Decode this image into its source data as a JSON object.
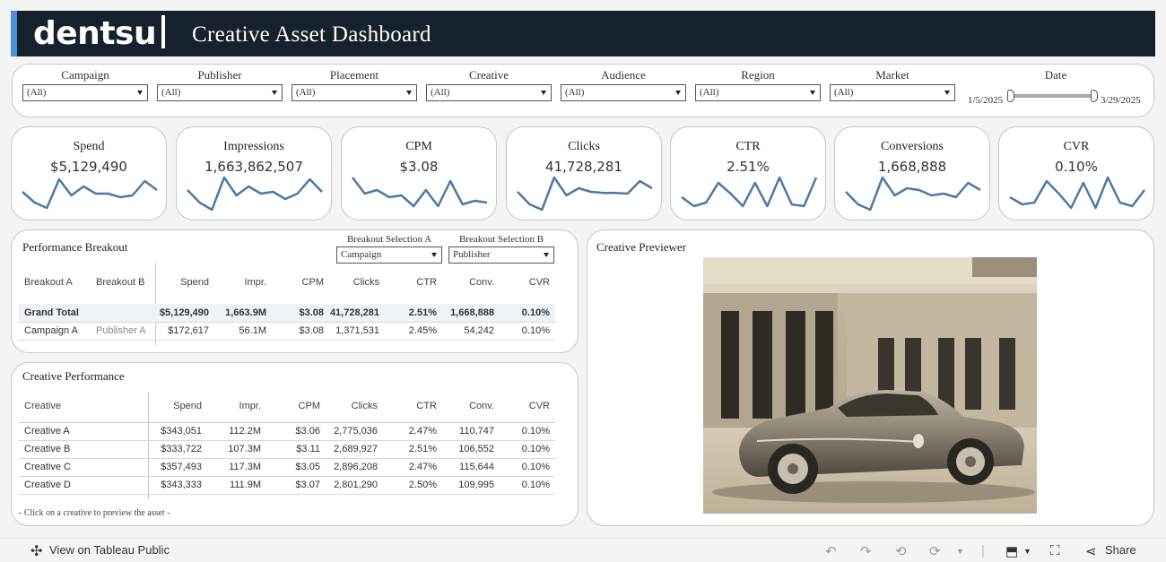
{
  "header": {
    "logo": "dentsu",
    "title": "Creative Asset Dashboard",
    "accent_color": "#4a90d9",
    "bg_color": "#15222d"
  },
  "filters": [
    {
      "label": "Campaign",
      "value": "(All)"
    },
    {
      "label": "Publisher",
      "value": "(All)"
    },
    {
      "label": "Placement",
      "value": "(All)"
    },
    {
      "label": "Creative",
      "value": "(All)"
    },
    {
      "label": "Audience",
      "value": "(All)"
    },
    {
      "label": "Region",
      "value": "(All)"
    },
    {
      "label": "Market",
      "value": "(All)"
    }
  ],
  "date_filter": {
    "label": "Date",
    "start": "1/5/2025",
    "end": "3/29/2025"
  },
  "kpis": [
    {
      "label": "Spend",
      "value": "$5,129,490",
      "trend": [
        0.45,
        0.75,
        0.9,
        0.1,
        0.55,
        0.3,
        0.5,
        0.5,
        0.6,
        0.55,
        0.15,
        0.4
      ]
    },
    {
      "label": "Impressions",
      "value": "1,663,862,507",
      "trend": [
        0.4,
        0.75,
        0.95,
        0.05,
        0.55,
        0.3,
        0.5,
        0.45,
        0.65,
        0.5,
        0.1,
        0.45
      ]
    },
    {
      "label": "CPM",
      "value": "$3.08",
      "trend": [
        0.05,
        0.5,
        0.4,
        0.6,
        0.55,
        0.85,
        0.4,
        0.85,
        0.15,
        0.8,
        0.7,
        0.75
      ]
    },
    {
      "label": "Clicks",
      "value": "41,728,281",
      "trend": [
        0.45,
        0.8,
        0.95,
        0.05,
        0.55,
        0.35,
        0.45,
        0.48,
        0.48,
        0.5,
        0.15,
        0.35
      ]
    },
    {
      "label": "CTR",
      "value": "2.51%",
      "trend": [
        0.6,
        0.85,
        0.75,
        0.2,
        0.5,
        0.85,
        0.2,
        0.85,
        0.05,
        0.8,
        0.85,
        0.05
      ]
    },
    {
      "label": "Conversions",
      "value": "1,668,888",
      "trend": [
        0.45,
        0.8,
        0.95,
        0.05,
        0.55,
        0.35,
        0.4,
        0.55,
        0.5,
        0.6,
        0.2,
        0.4
      ]
    },
    {
      "label": "CVR",
      "value": "0.10%",
      "trend": [
        0.6,
        0.8,
        0.75,
        0.15,
        0.5,
        0.9,
        0.2,
        0.9,
        0.05,
        0.75,
        0.85,
        0.4
      ]
    }
  ],
  "kpi_line_color": "#4e79a7",
  "performance_breakout": {
    "title": "Performance Breakout",
    "selection_a": {
      "label": "Breakout Selection A",
      "value": "Campaign"
    },
    "selection_b": {
      "label": "Breakout Selection B",
      "value": "Publisher"
    },
    "columns": [
      "Breakout A",
      "Breakout B",
      "Spend",
      "Impr.",
      "CPM",
      "Clicks",
      "CTR",
      "Conv.",
      "CVR"
    ],
    "rows": [
      [
        "Grand Total",
        "",
        "$5,129,490",
        "1,663.9M",
        "$3.08",
        "41,728,281",
        "2.51%",
        "1,668,888",
        "0.10%"
      ],
      [
        "Campaign A",
        "Publisher A",
        "$172,617",
        "56.1M",
        "$3.08",
        "1,371,531",
        "2.45%",
        "54,242",
        "0.10%"
      ]
    ]
  },
  "creative_performance": {
    "title": "Creative Performance",
    "columns": [
      "Creative",
      "Spend",
      "Impr.",
      "CPM",
      "Clicks",
      "CTR",
      "Conv.",
      "CVR"
    ],
    "rows": [
      [
        "Creative A",
        "$343,051",
        "112.2M",
        "$3.06",
        "2,775,036",
        "2.47%",
        "110,747",
        "0.10%"
      ],
      [
        "Creative B",
        "$333,722",
        "107.3M",
        "$3.11",
        "2,689,927",
        "2.51%",
        "106,552",
        "0.10%"
      ],
      [
        "Creative C",
        "$357,493",
        "117.3M",
        "$3.05",
        "2,896,208",
        "2.47%",
        "115,644",
        "0.10%"
      ],
      [
        "Creative D",
        "$343,333",
        "111.9M",
        "$3.07",
        "2,801,290",
        "2.50%",
        "109,995",
        "0.10%"
      ]
    ],
    "footnote": "- Click on a creative to preview the asset -"
  },
  "previewer": {
    "title": "Creative Previewer"
  },
  "toolbar": {
    "view_label": "View on Tableau Public",
    "share_label": "Share"
  }
}
